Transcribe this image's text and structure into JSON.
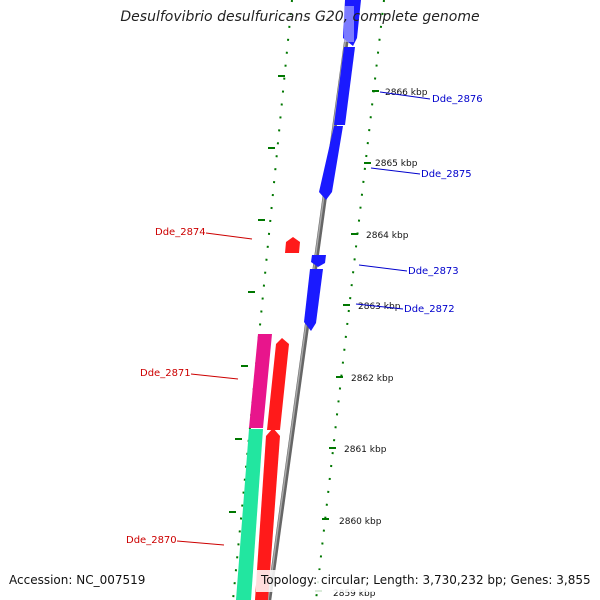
{
  "title": "Desulfovibrio desulfuricans G20, complete genome",
  "footer": {
    "accession": "Accession: NC_007519",
    "topology": "Topology: circular; Length: 3,730,232 bp; Genes: 3,855"
  },
  "colors": {
    "forward_cds": "#1a1aff",
    "reverse_cds": "#ff1a1a",
    "magenta_cds": "#e8158c",
    "cyan_cds": "#22e6a0",
    "backbone": "#888888",
    "tick": "#007700",
    "label_forward": "#0000cc",
    "label_reverse": "#cc0000"
  },
  "ticks": [
    {
      "label": "2866 kbp"
    },
    {
      "label": "2865 kbp"
    },
    {
      "label": "2864 kbp"
    },
    {
      "label": "2863 kbp"
    },
    {
      "label": "2862 kbp"
    },
    {
      "label": "2861 kbp"
    },
    {
      "label": "2860 kbp"
    },
    {
      "label": "2859 kbp"
    }
  ],
  "genes": [
    {
      "name": "Dde_2876",
      "strand": "forward"
    },
    {
      "name": "Dde_2875",
      "strand": "forward"
    },
    {
      "name": "Dde_2874",
      "strand": "reverse"
    },
    {
      "name": "Dde_2873",
      "strand": "forward"
    },
    {
      "name": "Dde_2872",
      "strand": "forward"
    },
    {
      "name": "Dde_2871",
      "strand": "reverse"
    },
    {
      "name": "Dde_2870",
      "strand": "reverse"
    }
  ]
}
